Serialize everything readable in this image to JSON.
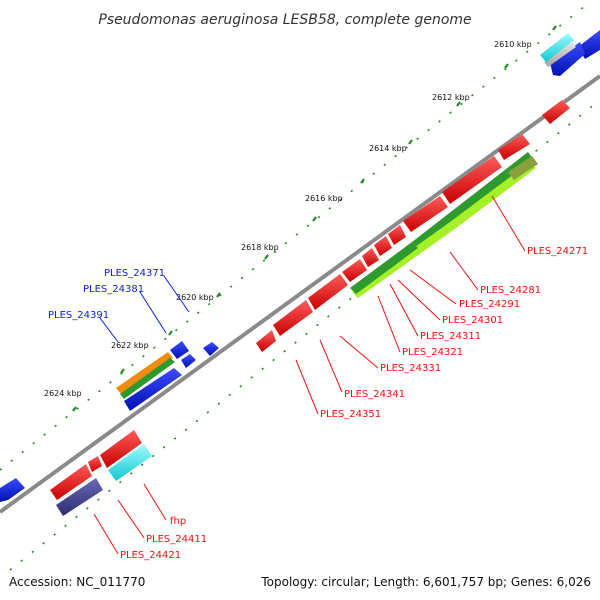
{
  "map": {
    "title": "Pseudomonas aeruginosa LESB58, complete genome",
    "footer": {
      "accession": "Accession: NC_011770",
      "summary": "Topology: circular; Length: 6,601,757 bp; Genes: 6,026"
    },
    "kbp_labels": [
      "2610 kbp",
      "2612 kbp",
      "2614 kbp",
      "2616 kbp",
      "2618 kbp",
      "2620 kbp",
      "2622 kbp",
      "2624 kbp"
    ],
    "reverse_strand_labels": [
      "PLES_24371",
      "PLES_24381",
      "PLES_24391"
    ],
    "forward_strand_labels": [
      "PLES_24271",
      "PLES_24281",
      "PLES_24291",
      "PLES_24301",
      "PLES_24311",
      "PLES_24321",
      "PLES_24331",
      "PLES_24341",
      "PLES_24351",
      "fhp",
      "PLES_24411",
      "PLES_24421"
    ],
    "colors": {
      "forward_gene": "#ee1111",
      "reverse_gene": "#0a1ee0",
      "cyan_feature": "#22e0e8",
      "navy_feature": "#3c3c90",
      "orange_feature": "#f08c14",
      "green_feature": "#2e9a2e",
      "lime_feature": "#a6f028",
      "backbone": "#8a8a8a",
      "tick": "#228822"
    }
  }
}
